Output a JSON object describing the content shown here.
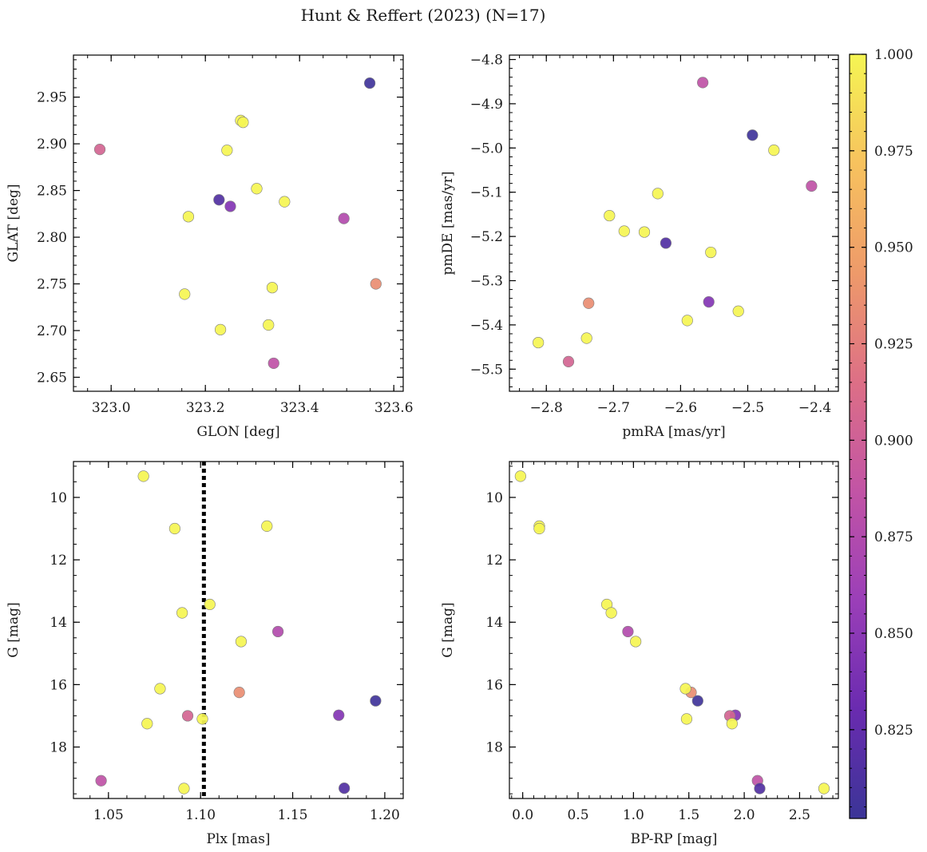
{
  "figure": {
    "title": "Hunt & Reffert (2023) (N=17)"
  },
  "colormap": {
    "name": "plasma",
    "stops": [
      "#3b3597",
      "#6a2bb0",
      "#9b3fb8",
      "#c254a5",
      "#dd6f86",
      "#ee9a6a",
      "#f7c25e",
      "#f5f553"
    ],
    "range": [
      0.802,
      1.0
    ],
    "ticks": [
      0.825,
      0.85,
      0.875,
      0.9,
      0.925,
      0.95,
      0.975,
      1.0
    ],
    "tick_labels": [
      "0.825",
      "0.850",
      "0.875",
      "0.900",
      "0.925",
      "0.950",
      "0.975",
      "1.000"
    ]
  },
  "chart_data": [
    {
      "type": "scatter",
      "name": "glon-glat",
      "xlabel": "GLON [deg]",
      "ylabel": "GLAT [deg]",
      "xlim": [
        322.92,
        323.62
      ],
      "ylim": [
        2.635,
        2.995
      ],
      "y_inverted": false,
      "xticks": [
        323.0,
        323.2,
        323.4,
        323.6
      ],
      "xtick_labels": [
        "323.0",
        "323.2",
        "323.4",
        "323.6"
      ],
      "x_minor": 0.05,
      "yticks": [
        2.65,
        2.7,
        2.75,
        2.8,
        2.85,
        2.9,
        2.95
      ],
      "ytick_labels": [
        "2.65",
        "2.70",
        "2.75",
        "2.80",
        "2.85",
        "2.90",
        "2.95"
      ],
      "y_minor": 0.01,
      "points": [
        {
          "x": 323.549,
          "y": 2.965,
          "c": 0.805
        },
        {
          "x": 323.275,
          "y": 2.925,
          "c": 1.0
        },
        {
          "x": 323.28,
          "y": 2.923,
          "c": 1.0
        },
        {
          "x": 322.976,
          "y": 2.894,
          "c": 0.905
        },
        {
          "x": 323.246,
          "y": 2.893,
          "c": 1.0
        },
        {
          "x": 323.309,
          "y": 2.852,
          "c": 1.0
        },
        {
          "x": 323.229,
          "y": 2.84,
          "c": 0.815
        },
        {
          "x": 323.368,
          "y": 2.838,
          "c": 1.0
        },
        {
          "x": 323.253,
          "y": 2.833,
          "c": 0.845
        },
        {
          "x": 323.164,
          "y": 2.822,
          "c": 1.0
        },
        {
          "x": 323.494,
          "y": 2.82,
          "c": 0.875
        },
        {
          "x": 323.562,
          "y": 2.75,
          "c": 0.935
        },
        {
          "x": 323.342,
          "y": 2.746,
          "c": 1.0
        },
        {
          "x": 323.156,
          "y": 2.739,
          "c": 1.0
        },
        {
          "x": 323.232,
          "y": 2.701,
          "c": 1.0
        },
        {
          "x": 323.334,
          "y": 2.706,
          "c": 1.0
        },
        {
          "x": 323.345,
          "y": 2.665,
          "c": 0.885
        }
      ]
    },
    {
      "type": "scatter",
      "name": "pmra-pmde",
      "xlabel": "pmRA [mas/yr]",
      "ylabel": "pmDE [mas/yr]",
      "xlim": [
        -2.855,
        -2.365
      ],
      "ylim": [
        -5.55,
        -4.79
      ],
      "y_inverted": false,
      "xticks": [
        -2.8,
        -2.7,
        -2.6,
        -2.5,
        -2.4
      ],
      "xtick_labels": [
        "−2.8",
        "−2.7",
        "−2.6",
        "−2.5",
        "−2.4"
      ],
      "x_minor": 0.02,
      "yticks": [
        -5.5,
        -5.4,
        -5.3,
        -5.2,
        -5.1,
        -5.0,
        -4.9,
        -4.8
      ],
      "ytick_labels": [
        "−5.5",
        "−5.4",
        "−5.3",
        "−5.2",
        "−5.1",
        "−5.0",
        "−4.9",
        "−4.8"
      ],
      "y_minor": 0.02,
      "points": [
        {
          "x": -2.567,
          "y": -4.852,
          "c": 0.885
        },
        {
          "x": -2.493,
          "y": -4.971,
          "c": 0.805
        },
        {
          "x": -2.461,
          "y": -5.005,
          "c": 1.0
        },
        {
          "x": -2.405,
          "y": -5.086,
          "c": 0.885
        },
        {
          "x": -2.634,
          "y": -5.103,
          "c": 1.0
        },
        {
          "x": -2.706,
          "y": -5.153,
          "c": 1.0
        },
        {
          "x": -2.684,
          "y": -5.188,
          "c": 1.0
        },
        {
          "x": -2.654,
          "y": -5.19,
          "c": 1.0
        },
        {
          "x": -2.622,
          "y": -5.215,
          "c": 0.815
        },
        {
          "x": -2.555,
          "y": -5.236,
          "c": 1.0
        },
        {
          "x": -2.558,
          "y": -5.348,
          "c": 0.845
        },
        {
          "x": -2.737,
          "y": -5.351,
          "c": 0.935
        },
        {
          "x": -2.514,
          "y": -5.369,
          "c": 1.0
        },
        {
          "x": -2.59,
          "y": -5.39,
          "c": 1.0
        },
        {
          "x": -2.74,
          "y": -5.43,
          "c": 1.0
        },
        {
          "x": -2.812,
          "y": -5.44,
          "c": 1.0
        },
        {
          "x": -2.767,
          "y": -5.483,
          "c": 0.905
        }
      ]
    },
    {
      "type": "scatter",
      "name": "plx-g",
      "xlabel": "Plx [mas]",
      "ylabel": "G [mag]",
      "xlim": [
        1.031,
        1.21
      ],
      "ylim": [
        19.65,
        8.85
      ],
      "y_inverted": true,
      "xticks": [
        1.05,
        1.1,
        1.15,
        1.2
      ],
      "xtick_labels": [
        "1.05",
        "1.10",
        "1.15",
        "1.20"
      ],
      "x_minor": 0.01,
      "yticks": [
        10,
        12,
        14,
        16,
        18
      ],
      "ytick_labels": [
        "10",
        "12",
        "14",
        "16",
        "18"
      ],
      "y_minor": 0.5,
      "vline": {
        "x": 1.1018,
        "style": "dotted"
      },
      "points": [
        {
          "x": 1.069,
          "y": 9.32,
          "c": 1.0
        },
        {
          "x": 1.086,
          "y": 11.0,
          "c": 1.0
        },
        {
          "x": 1.136,
          "y": 10.92,
          "c": 1.0
        },
        {
          "x": 1.105,
          "y": 13.43,
          "c": 1.0
        },
        {
          "x": 1.09,
          "y": 13.7,
          "c": 1.0
        },
        {
          "x": 1.142,
          "y": 14.3,
          "c": 0.875
        },
        {
          "x": 1.122,
          "y": 14.62,
          "c": 1.0
        },
        {
          "x": 1.078,
          "y": 16.13,
          "c": 1.0
        },
        {
          "x": 1.121,
          "y": 16.25,
          "c": 0.935
        },
        {
          "x": 1.195,
          "y": 16.52,
          "c": 0.805
        },
        {
          "x": 1.175,
          "y": 16.98,
          "c": 0.845
        },
        {
          "x": 1.093,
          "y": 17.0,
          "c": 0.905
        },
        {
          "x": 1.101,
          "y": 17.1,
          "c": 1.0
        },
        {
          "x": 1.071,
          "y": 17.25,
          "c": 1.0
        },
        {
          "x": 1.046,
          "y": 19.08,
          "c": 0.885
        },
        {
          "x": 1.091,
          "y": 19.33,
          "c": 1.0
        },
        {
          "x": 1.178,
          "y": 19.32,
          "c": 0.815
        }
      ]
    },
    {
      "type": "scatter",
      "name": "bprp-g",
      "xlabel": "BP-RP [mag]",
      "ylabel": "G [mag]",
      "xlim": [
        -0.12,
        2.85
      ],
      "ylim": [
        19.65,
        8.85
      ],
      "y_inverted": true,
      "xticks": [
        0.0,
        0.5,
        1.0,
        1.5,
        2.0,
        2.5
      ],
      "xtick_labels": [
        "0.0",
        "0.5",
        "1.0",
        "1.5",
        "2.0",
        "2.5"
      ],
      "x_minor": 0.1,
      "yticks": [
        10,
        12,
        14,
        16,
        18
      ],
      "ytick_labels": [
        "10",
        "12",
        "14",
        "16",
        "18"
      ],
      "y_minor": 0.5,
      "points": [
        {
          "x": -0.02,
          "y": 9.32,
          "c": 1.0
        },
        {
          "x": 0.15,
          "y": 10.92,
          "c": 1.0
        },
        {
          "x": 0.15,
          "y": 11.0,
          "c": 1.0
        },
        {
          "x": 0.76,
          "y": 13.43,
          "c": 1.0
        },
        {
          "x": 0.8,
          "y": 13.7,
          "c": 1.0
        },
        {
          "x": 0.95,
          "y": 14.3,
          "c": 0.875
        },
        {
          "x": 1.02,
          "y": 14.62,
          "c": 1.0
        },
        {
          "x": 1.52,
          "y": 16.25,
          "c": 0.935
        },
        {
          "x": 1.47,
          "y": 16.13,
          "c": 1.0
        },
        {
          "x": 1.58,
          "y": 16.52,
          "c": 0.805
        },
        {
          "x": 1.92,
          "y": 16.98,
          "c": 0.845
        },
        {
          "x": 1.87,
          "y": 17.0,
          "c": 0.905
        },
        {
          "x": 1.48,
          "y": 17.1,
          "c": 1.0
        },
        {
          "x": 1.89,
          "y": 17.25,
          "c": 1.0
        },
        {
          "x": 2.12,
          "y": 19.08,
          "c": 0.885
        },
        {
          "x": 2.14,
          "y": 19.33,
          "c": 0.815
        },
        {
          "x": 2.72,
          "y": 19.33,
          "c": 1.0
        }
      ]
    }
  ]
}
